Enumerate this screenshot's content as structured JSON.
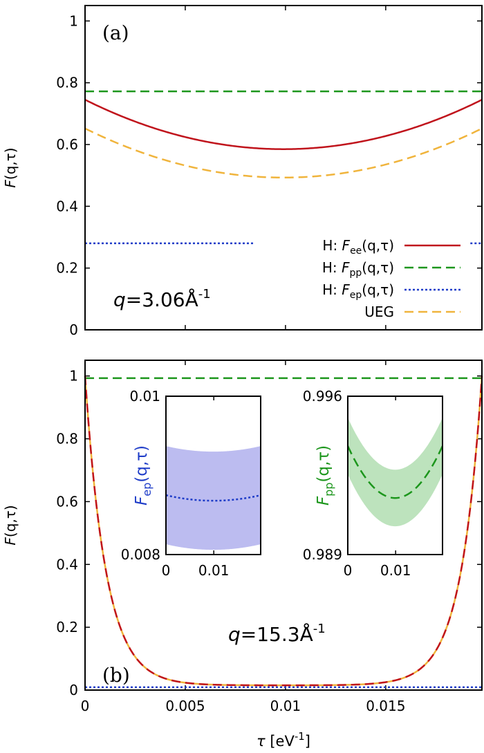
{
  "chart_data": [
    {
      "type": "line",
      "panel_label": "(a)",
      "annotation": {
        "prefix": "q",
        "value": "=3.06Å",
        "exp": "-1"
      },
      "ylabel": {
        "base": "F",
        "args": "(q,τ)"
      },
      "xlim": [
        0,
        0.0198
      ],
      "ylim": [
        0,
        1.05
      ],
      "yticks": [
        0,
        0.2,
        0.4,
        0.6,
        0.8,
        1
      ],
      "ytick_labels": [
        "0",
        "0.2",
        "0.4",
        "0.6",
        "0.8",
        "1"
      ],
      "xticks": [
        0,
        0.005,
        0.01,
        0.015
      ],
      "legend_position": "bottom-right",
      "series": [
        {
          "key": "ee",
          "legend": {
            "prefix": "H: ",
            "base": "F",
            "sub": "ee",
            "args": "(q,τ)"
          },
          "color": "#c0141c",
          "style": "solid",
          "model": "parabola",
          "edge": 0.745,
          "mid": 0.585
        },
        {
          "key": "pp",
          "legend": {
            "prefix": "H: ",
            "base": "F",
            "sub": "pp",
            "args": "(q,τ)"
          },
          "color": "#1c961c",
          "style": "dashed",
          "model": "const",
          "value": 0.772
        },
        {
          "key": "ep",
          "legend": {
            "prefix": "H: ",
            "base": "F",
            "sub": "ep",
            "args": "(q,τ)"
          },
          "color": "#1e3cc8",
          "style": "dotted",
          "model": "const",
          "value": 0.28
        },
        {
          "key": "ueg",
          "legend": {
            "prefix": "",
            "base": "",
            "sub": "",
            "args": "UEG"
          },
          "color": "#f0b43c",
          "style": "dashed",
          "model": "parabola",
          "edge": 0.652,
          "mid": 0.493
        }
      ]
    },
    {
      "type": "line",
      "panel_label": "(b)",
      "annotation": {
        "prefix": "q",
        "value": "=15.3Å",
        "exp": "-1"
      },
      "ylabel": {
        "base": "F",
        "args": "(q,τ)"
      },
      "xlabel": {
        "base": "τ",
        "unit": " [eV",
        "exp": "-1",
        "close": "]"
      },
      "xlim": [
        0,
        0.0198
      ],
      "ylim": [
        0,
        1.05
      ],
      "yticks": [
        0,
        0.2,
        0.4,
        0.6,
        0.8,
        1
      ],
      "ytick_labels": [
        "0",
        "0.2",
        "0.4",
        "0.6",
        "0.8",
        "1"
      ],
      "xticks": [
        0,
        0.005,
        0.01,
        0.015
      ],
      "xtick_labels": [
        "0",
        "0.005",
        "0.01",
        "0.015"
      ],
      "series": [
        {
          "key": "pp",
          "color": "#1c961c",
          "style": "dashed",
          "model": "const",
          "value": 0.993
        },
        {
          "key": "ep",
          "color": "#1e3cc8",
          "style": "dotted",
          "model": "const",
          "value": 0.009
        },
        {
          "key": "ueg",
          "color": "#f0b43c",
          "style": "solid",
          "model": "decay",
          "floor": 0.015,
          "scale": 0.00105
        },
        {
          "key": "ee",
          "color": "#c0141c",
          "style": "dashed",
          "model": "decay",
          "floor": 0.015,
          "scale": 0.00105
        }
      ],
      "insets": [
        {
          "key": "ep",
          "ylabel": {
            "base": "F",
            "sub": "ep",
            "args": "(q,τ)"
          },
          "label_color": "#1e3cc8",
          "ylim": [
            0.008,
            0.01
          ],
          "ytick_labels": [
            "0.01",
            "0.008"
          ],
          "xlim": [
            0,
            0.0198
          ],
          "xtick_labels": [
            "0",
            "0.01"
          ],
          "xticks": [
            0,
            0.01
          ],
          "line_color": "#1e3cc8",
          "band_color": "#bcbcf0",
          "line_style": "dotted",
          "line": {
            "edge": 0.00875,
            "mid": 0.00868
          },
          "band": {
            "half_width": 0.00062
          }
        },
        {
          "key": "pp",
          "ylabel": {
            "base": "F",
            "sub": "pp",
            "args": "(q,τ)"
          },
          "label_color": "#1c961c",
          "ylim": [
            0.989,
            0.996
          ],
          "ytick_labels": [
            "0.996",
            "0.989"
          ],
          "xlim": [
            0,
            0.0198
          ],
          "xtick_labels": [
            "0",
            "0.01"
          ],
          "xticks": [
            0,
            0.01
          ],
          "line_color": "#1c961c",
          "band_color": "#bde3bd",
          "line_style": "dashed",
          "line": {
            "edge": 0.9938,
            "mid": 0.9915
          },
          "band": {
            "half_width": 0.00125
          }
        }
      ]
    }
  ]
}
